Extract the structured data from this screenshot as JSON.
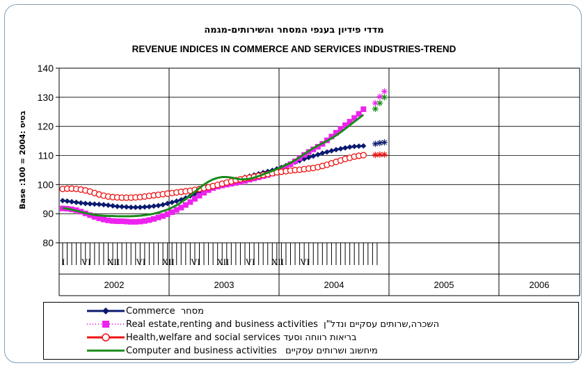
{
  "chart_data": {
    "type": "line",
    "title_he": "מדדי פידיון בענפי המסחר והשירותים-מגמה",
    "title_en": "REVENUE INDICES IN COMMERCE AND SERVICES INDUSTRIES-TREND",
    "ylabel": "Base :100 = 2004: בסיס",
    "ylim": [
      80,
      140
    ],
    "yticks": [
      "80",
      "90",
      "100",
      "110",
      "120",
      "130",
      "140"
    ],
    "month_labels": [
      "I",
      "VI",
      "XII",
      "VI",
      "XII",
      "VI",
      "XII",
      "VI",
      "XII",
      "VI"
    ],
    "years": [
      "2002",
      "2003",
      "2004",
      "2005",
      "2006"
    ],
    "grid": true,
    "legend_position": "bottom",
    "series": [
      {
        "name": "Commerce",
        "name_he": "מסחר",
        "legend_text": "Commerce  מסחר",
        "color": "#0a1a6e",
        "marker": "diamond",
        "values": [
          94.5,
          94.3,
          94.1,
          93.9,
          93.7,
          93.5,
          93.4,
          93.3,
          93.2,
          93.1,
          92.9,
          92.7,
          92.5,
          92.4,
          92.3,
          92.2,
          92.2,
          92.2,
          92.3,
          92.4,
          92.6,
          92.8,
          93.1,
          93.5,
          93.9,
          94.3,
          94.8,
          95.4,
          96.1,
          96.8,
          97.5,
          98.1,
          98.7,
          99.2,
          99.7,
          100.2,
          100.6,
          101.1,
          101.5,
          102.0,
          102.5,
          102.9,
          103.3,
          103.7,
          104.1,
          104.5,
          104.9,
          105.4,
          105.9,
          106.5,
          107.1,
          107.7,
          108.2,
          108.8,
          109.3,
          109.8,
          110.3,
          110.8,
          111.2,
          111.6,
          112.0,
          112.3,
          112.6,
          112.9,
          113.1,
          113.2,
          113.3
        ],
        "forecast": [
          114.0,
          114.3,
          114.5
        ]
      },
      {
        "name": "Real estate,renting and business activities",
        "name_he": "השכרה,שרותים עסקיים ונדל\"ן",
        "legend_text": "Real estate,renting and business activities  השכרה,שרותים עסקיים ונדל\"ן",
        "color": "#ee22ee",
        "marker": "square",
        "values": [
          91.8,
          91.7,
          91.5,
          91.2,
          90.7,
          90.1,
          89.5,
          88.9,
          88.4,
          88.0,
          87.7,
          87.5,
          87.4,
          87.4,
          87.3,
          87.2,
          87.2,
          87.3,
          87.5,
          87.8,
          88.2,
          88.7,
          89.2,
          89.8,
          90.5,
          91.3,
          92.1,
          93.0,
          94.0,
          95.1,
          96.2,
          97.2,
          98.1,
          98.8,
          99.3,
          99.7,
          100.0,
          100.3,
          100.6,
          100.9,
          101.3,
          101.7,
          102.1,
          102.5,
          102.9,
          103.3,
          103.8,
          104.4,
          105.1,
          106.0,
          107.0,
          108.0,
          109.1,
          110.2,
          111.2,
          112.1,
          113.0,
          114.0,
          115.2,
          116.5,
          117.8,
          119.1,
          120.4,
          121.6,
          122.9,
          124.3,
          125.9
        ],
        "forecast": [
          128.0,
          130.2,
          132.0
        ]
      },
      {
        "name": "Health,welfare and social services",
        "name_he": "בריאות רווחה וסעד",
        "legend_text": "Health,welfare and social services בריאות רווחה וסעד",
        "color": "#ee1111",
        "marker": "circle",
        "values": [
          98.5,
          98.6,
          98.6,
          98.5,
          98.3,
          98.0,
          97.6,
          97.1,
          96.6,
          96.2,
          95.9,
          95.7,
          95.6,
          95.5,
          95.5,
          95.5,
          95.6,
          95.7,
          95.9,
          96.1,
          96.3,
          96.5,
          96.7,
          96.9,
          97.1,
          97.3,
          97.5,
          97.7,
          97.9,
          98.2,
          98.5,
          98.8,
          99.1,
          99.5,
          99.9,
          100.3,
          100.7,
          101.1,
          101.5,
          101.8,
          102.1,
          102.4,
          102.7,
          103.0,
          103.3,
          103.6,
          103.9,
          104.2,
          104.4,
          104.6,
          104.8,
          105.0,
          105.1,
          105.3,
          105.5,
          105.7,
          106.0,
          106.4,
          106.8,
          107.3,
          107.8,
          108.3,
          108.8,
          109.2,
          109.6,
          109.9,
          110.1
        ],
        "forecast": [
          110.2,
          110.3,
          110.3
        ]
      },
      {
        "name": "Computer and business activities",
        "name_he": "מיחשוב ושרותים עסקיים",
        "legend_text": "Computer and business activities   מיחשוב ושרותים עסקיים",
        "color": "#1a8a1a",
        "marker": "none",
        "values": [
          92.0,
          91.7,
          91.4,
          91.0,
          90.6,
          90.2,
          89.9,
          89.6,
          89.4,
          89.3,
          89.2,
          89.2,
          89.1,
          89.1,
          89.1,
          89.1,
          89.2,
          89.3,
          89.5,
          89.7,
          90.0,
          90.4,
          90.9,
          91.4,
          92.1,
          92.9,
          93.9,
          95.0,
          96.2,
          97.5,
          98.8,
          100.0,
          101.0,
          101.8,
          102.3,
          102.6,
          102.6,
          102.4,
          102.1,
          101.8,
          101.8,
          102.0,
          102.4,
          102.9,
          103.5,
          104.1,
          104.7,
          105.3,
          106.0,
          106.7,
          107.5,
          108.4,
          109.4,
          110.5,
          111.5,
          112.5,
          113.4,
          114.2,
          115.0,
          115.9,
          116.9,
          118.0,
          119.2,
          120.4,
          121.6,
          122.8,
          124.0
        ],
        "forecast": [
          126.0,
          128.0,
          130.0
        ]
      }
    ]
  }
}
